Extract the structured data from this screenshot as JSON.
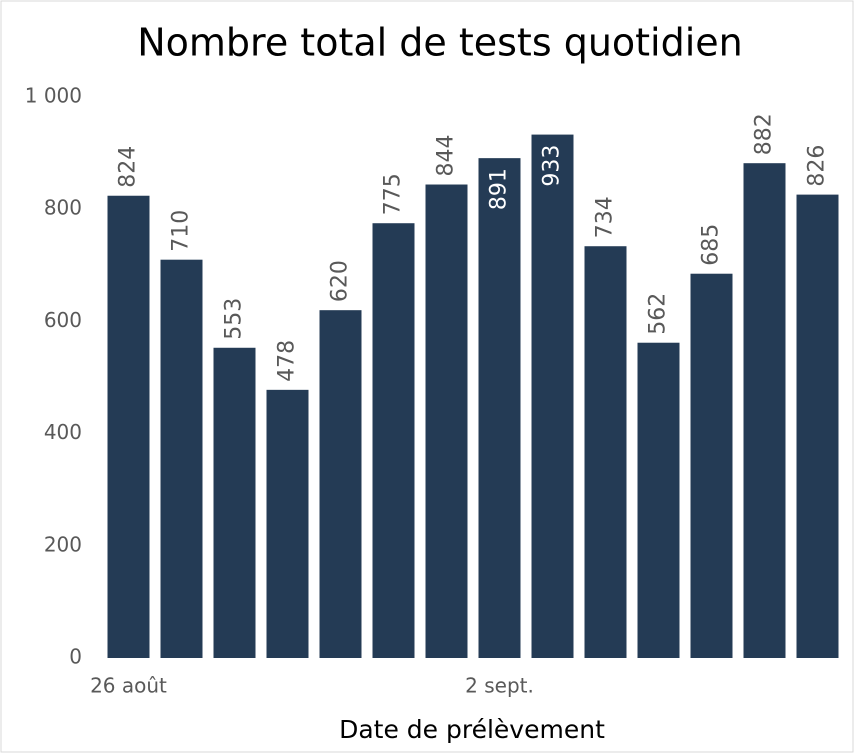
{
  "chart_data": {
    "type": "bar",
    "title": "Nombre total de tests quotidien",
    "x_label": "Date de prélèvement",
    "categories": [
      "26 août",
      null,
      null,
      null,
      null,
      null,
      null,
      "2 sept.",
      null,
      null,
      null,
      null,
      null,
      null
    ],
    "values": [
      824,
      710,
      553,
      478,
      620,
      775,
      844,
      891,
      933,
      734,
      562,
      685,
      882,
      826
    ],
    "color": "#243b55",
    "ylim": [
      0,
      1000
    ],
    "yticks": [
      0,
      200,
      400,
      600,
      800,
      {
        "value": 1000,
        "label": "1 000"
      }
    ],
    "grid": false
  }
}
